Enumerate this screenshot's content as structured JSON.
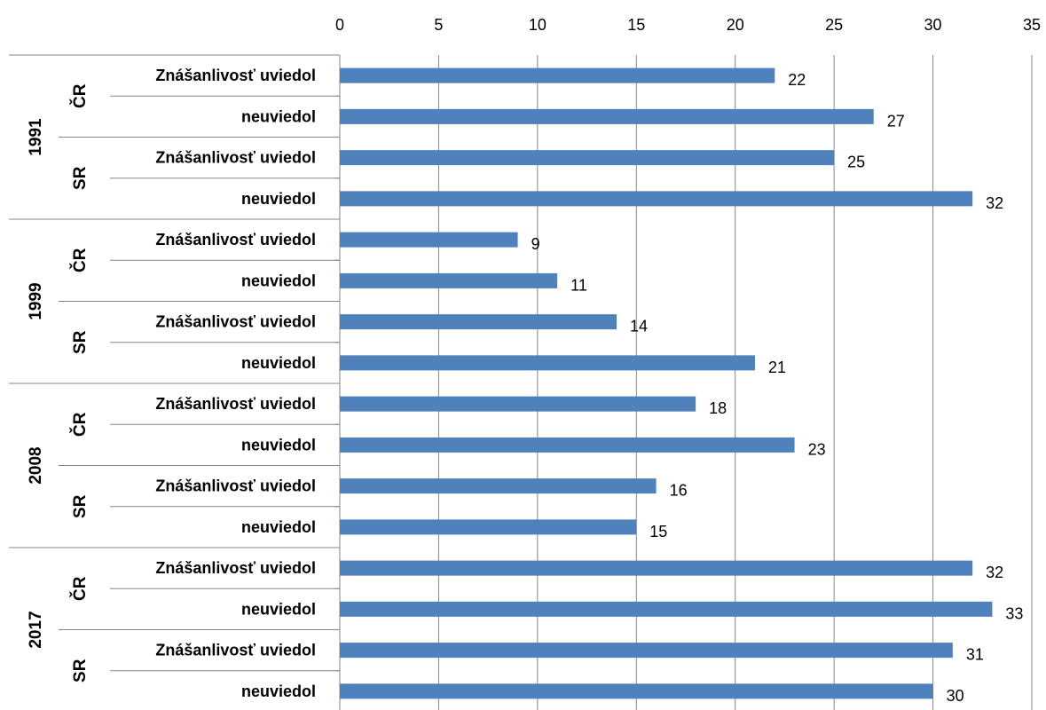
{
  "chart_data": {
    "type": "bar",
    "orientation": "horizontal",
    "xlim": [
      0,
      35
    ],
    "x_ticks": [
      0,
      5,
      10,
      15,
      20,
      25,
      30,
      35
    ],
    "grid": "vertical",
    "legend": "none",
    "bar_color": "#4f81bd",
    "groups": [
      {
        "year": "1991",
        "countries": [
          {
            "name": "ČR",
            "rows": [
              {
                "label": "Znášanlivosť uviedol",
                "value": 22
              },
              {
                "label": "neuviedol",
                "value": 27
              }
            ]
          },
          {
            "name": "SR",
            "rows": [
              {
                "label": "Znášanlivosť uviedol",
                "value": 25
              },
              {
                "label": "neuviedol",
                "value": 32
              }
            ]
          }
        ]
      },
      {
        "year": "1999",
        "countries": [
          {
            "name": "ČR",
            "rows": [
              {
                "label": "Znášanlivosť uviedol",
                "value": 9
              },
              {
                "label": "neuviedol",
                "value": 11
              }
            ]
          },
          {
            "name": "SR",
            "rows": [
              {
                "label": "Znášanlivosť uviedol",
                "value": 14
              },
              {
                "label": "neuviedol",
                "value": 21
              }
            ]
          }
        ]
      },
      {
        "year": "2008",
        "countries": [
          {
            "name": "ČR",
            "rows": [
              {
                "label": "Znášanlivosť uviedol",
                "value": 18
              },
              {
                "label": "neuviedol",
                "value": 23
              }
            ]
          },
          {
            "name": "SR",
            "rows": [
              {
                "label": "Znášanlivosť uviedol",
                "value": 16
              },
              {
                "label": "neuviedol",
                "value": 15
              }
            ]
          }
        ]
      },
      {
        "year": "2017",
        "countries": [
          {
            "name": "ČR",
            "rows": [
              {
                "label": "Znášanlivosť uviedol",
                "value": 32
              },
              {
                "label": "neuviedol",
                "value": 33
              }
            ]
          },
          {
            "name": "SR",
            "rows": [
              {
                "label": "Znášanlivosť uviedol",
                "value": 31
              },
              {
                "label": "neuviedol",
                "value": 30
              }
            ]
          }
        ]
      }
    ]
  }
}
